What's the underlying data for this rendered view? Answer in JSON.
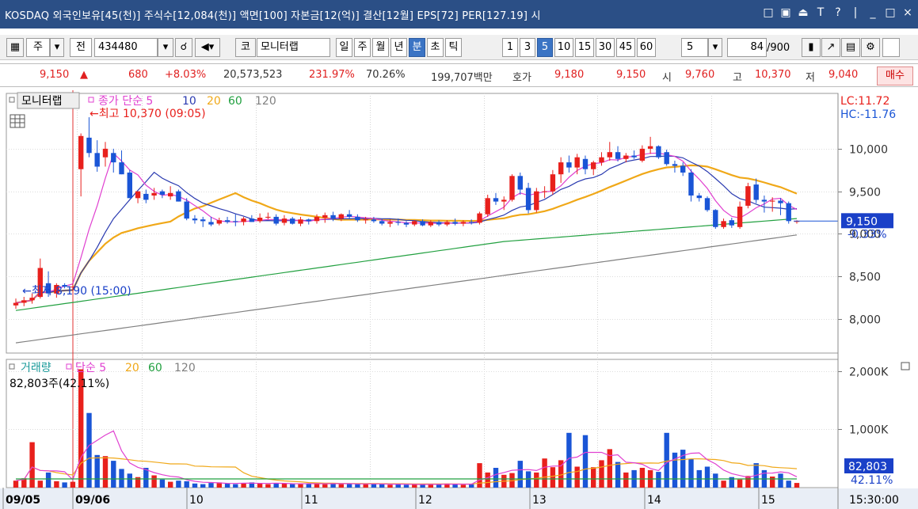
{
  "window": {
    "title": "KOSDAQ 외국인보유[45(천)] 주식수[12,084(천)] 액면[100] 자본금[12(억)] 결산[12월] EPS[72] PER[127.19] 시",
    "tool_glyphs": [
      "□",
      "▣",
      "⏏",
      "T",
      "?",
      "|",
      "_",
      "□",
      "×"
    ]
  },
  "toolbar": {
    "market_opt": "주",
    "all_label": "전",
    "code": "434480",
    "market_code": "코",
    "name": "모니터랩",
    "period_buttons": [
      "일",
      "주",
      "월",
      "년",
      "분",
      "초",
      "틱"
    ],
    "selected_period": "분",
    "interval_buttons": [
      "1",
      "3",
      "5",
      "10",
      "15",
      "30",
      "45",
      "60"
    ],
    "selected_interval": "5",
    "interval_value": "5",
    "count_value": "84",
    "count_total": "/900"
  },
  "quote": {
    "price": "9,150",
    "arrow": "▲",
    "change": "680",
    "change_pct": "+8.03%",
    "volume": "20,573,523",
    "volume_ratio": "231.97%",
    "turnover": "70.26%",
    "amount": "199,707백만",
    "ask_label": "호가",
    "ask": "9,180",
    "bid": "9,150",
    "open_label": "시",
    "open": "9,760",
    "high_label": "고",
    "high": "10,370",
    "low_label": "저",
    "low": "9,040",
    "buy_button": "매수"
  },
  "price_panel": {
    "legend_name": "모니터랩",
    "legend_ma_label": "종가 단순",
    "legend_periods": [
      "5",
      "10",
      "20",
      "60",
      "120"
    ],
    "high_note": "←최고 10,370 (09:05)",
    "low_note": "←최저 8,190 (15:00)",
    "lc_label": "LC:11.72",
    "hc_label": "HC:-11.76",
    "current_price": "9,150",
    "current_pct": "-0.33%",
    "y_ticks": [
      "10,000",
      "9,500",
      "9,000",
      "8,500",
      "8,000"
    ]
  },
  "volume_panel": {
    "legend_name": "거래량",
    "legend_ma_label": "단순",
    "legend_periods": [
      "5",
      "20",
      "60",
      "120"
    ],
    "info": "82,803주(42.11%)",
    "y_ticks": [
      "2,000K",
      "1,000K"
    ],
    "current_volume": "82,803",
    "current_pct": "42.11%"
  },
  "x_axis": {
    "labels": [
      "09/05",
      "09/06",
      "10",
      "11",
      "12",
      "13",
      "14",
      "15"
    ],
    "time": "15:30:00"
  },
  "colors": {
    "up": "#e8201c",
    "down": "#1a55d6",
    "ma5": "#e040d0",
    "ma10": "#2a3ab0",
    "ma20": "#f0a818",
    "ma60": "#22a040",
    "ma120": "#808080",
    "titlebar": "#2b4f86",
    "selected": "#3b74c4"
  },
  "chart_data": {
    "type": "candlestick",
    "interval": "5분",
    "ylim": [
      7600,
      10650
    ],
    "candles": [
      {
        "o": 8160,
        "h": 8240,
        "l": 8120,
        "c": 8190
      },
      {
        "o": 8190,
        "h": 8260,
        "l": 8150,
        "c": 8220
      },
      {
        "o": 8220,
        "h": 8300,
        "l": 8180,
        "c": 8250
      },
      {
        "o": 8260,
        "h": 8710,
        "l": 8240,
        "c": 8600
      },
      {
        "o": 8420,
        "h": 8560,
        "l": 8260,
        "c": 8300
      },
      {
        "o": 8300,
        "h": 8420,
        "l": 8250,
        "c": 8400
      },
      {
        "o": 8400,
        "h": 8420,
        "l": 8360,
        "c": 8380
      },
      {
        "o": 8380,
        "h": 8420,
        "l": 8330,
        "c": 8380
      },
      {
        "o": 9760,
        "h": 10180,
        "l": 9440,
        "c": 10150
      },
      {
        "o": 10130,
        "h": 10370,
        "l": 9900,
        "c": 9950
      },
      {
        "o": 9950,
        "h": 10100,
        "l": 9730,
        "c": 9790
      },
      {
        "o": 9900,
        "h": 10080,
        "l": 9790,
        "c": 10000
      },
      {
        "o": 9950,
        "h": 10000,
        "l": 9720,
        "c": 9840
      },
      {
        "o": 9840,
        "h": 9980,
        "l": 9700,
        "c": 9700
      },
      {
        "o": 9720,
        "h": 9750,
        "l": 9420,
        "c": 9420
      },
      {
        "o": 9420,
        "h": 9500,
        "l": 9360,
        "c": 9500
      },
      {
        "o": 9470,
        "h": 9520,
        "l": 9360,
        "c": 9400
      },
      {
        "o": 9450,
        "h": 9540,
        "l": 9400,
        "c": 9480
      },
      {
        "o": 9500,
        "h": 9520,
        "l": 9420,
        "c": 9460
      },
      {
        "o": 9440,
        "h": 9560,
        "l": 9400,
        "c": 9480
      },
      {
        "o": 9500,
        "h": 9520,
        "l": 9380,
        "c": 9380
      },
      {
        "o": 9380,
        "h": 9420,
        "l": 9160,
        "c": 9180
      },
      {
        "o": 9180,
        "h": 9220,
        "l": 9120,
        "c": 9160
      },
      {
        "o": 9170,
        "h": 9200,
        "l": 9080,
        "c": 9150
      },
      {
        "o": 9140,
        "h": 9200,
        "l": 9090,
        "c": 9110
      },
      {
        "o": 9120,
        "h": 9190,
        "l": 9100,
        "c": 9160
      },
      {
        "o": 9160,
        "h": 9200,
        "l": 9120,
        "c": 9140
      },
      {
        "o": 9150,
        "h": 9230,
        "l": 9090,
        "c": 9140
      },
      {
        "o": 9140,
        "h": 9200,
        "l": 9100,
        "c": 9180
      },
      {
        "o": 9180,
        "h": 9220,
        "l": 9140,
        "c": 9140
      },
      {
        "o": 9150,
        "h": 9240,
        "l": 9130,
        "c": 9190
      },
      {
        "o": 9190,
        "h": 9250,
        "l": 9170,
        "c": 9200
      },
      {
        "o": 9200,
        "h": 9230,
        "l": 9100,
        "c": 9120
      },
      {
        "o": 9130,
        "h": 9220,
        "l": 9100,
        "c": 9180
      },
      {
        "o": 9180,
        "h": 9200,
        "l": 9110,
        "c": 9120
      },
      {
        "o": 9120,
        "h": 9200,
        "l": 9090,
        "c": 9170
      },
      {
        "o": 9170,
        "h": 9180,
        "l": 9110,
        "c": 9150
      },
      {
        "o": 9150,
        "h": 9230,
        "l": 9120,
        "c": 9200
      },
      {
        "o": 9190,
        "h": 9250,
        "l": 9130,
        "c": 9220
      },
      {
        "o": 9220,
        "h": 9260,
        "l": 9150,
        "c": 9180
      },
      {
        "o": 9180,
        "h": 9240,
        "l": 9150,
        "c": 9230
      },
      {
        "o": 9230,
        "h": 9280,
        "l": 9170,
        "c": 9200
      },
      {
        "o": 9200,
        "h": 9230,
        "l": 9140,
        "c": 9160
      },
      {
        "o": 9160,
        "h": 9200,
        "l": 9120,
        "c": 9170
      },
      {
        "o": 9170,
        "h": 9200,
        "l": 9130,
        "c": 9150
      },
      {
        "o": 9150,
        "h": 9180,
        "l": 9100,
        "c": 9120
      },
      {
        "o": 9120,
        "h": 9170,
        "l": 9080,
        "c": 9140
      },
      {
        "o": 9140,
        "h": 9180,
        "l": 9100,
        "c": 9130
      },
      {
        "o": 9130,
        "h": 9150,
        "l": 9080,
        "c": 9110
      },
      {
        "o": 9110,
        "h": 9160,
        "l": 9090,
        "c": 9150
      },
      {
        "o": 9150,
        "h": 9170,
        "l": 9090,
        "c": 9100
      },
      {
        "o": 9100,
        "h": 9160,
        "l": 9080,
        "c": 9140
      },
      {
        "o": 9140,
        "h": 9160,
        "l": 9090,
        "c": 9110
      },
      {
        "o": 9110,
        "h": 9160,
        "l": 9090,
        "c": 9140
      },
      {
        "o": 9140,
        "h": 9180,
        "l": 9100,
        "c": 9120
      },
      {
        "o": 9120,
        "h": 9160,
        "l": 9090,
        "c": 9140
      },
      {
        "o": 9140,
        "h": 9170,
        "l": 9110,
        "c": 9130
      },
      {
        "o": 9130,
        "h": 9260,
        "l": 9110,
        "c": 9240
      },
      {
        "o": 9230,
        "h": 9460,
        "l": 9200,
        "c": 9420
      },
      {
        "o": 9420,
        "h": 9480,
        "l": 9340,
        "c": 9380
      },
      {
        "o": 9380,
        "h": 9440,
        "l": 9280,
        "c": 9400
      },
      {
        "o": 9400,
        "h": 9700,
        "l": 9380,
        "c": 9680
      },
      {
        "o": 9680,
        "h": 9720,
        "l": 9460,
        "c": 9520
      },
      {
        "o": 9540,
        "h": 9600,
        "l": 9240,
        "c": 9280
      },
      {
        "o": 9280,
        "h": 9540,
        "l": 9250,
        "c": 9500
      },
      {
        "o": 9500,
        "h": 9560,
        "l": 9420,
        "c": 9500
      },
      {
        "o": 9500,
        "h": 9750,
        "l": 9460,
        "c": 9700
      },
      {
        "o": 9700,
        "h": 9900,
        "l": 9600,
        "c": 9840
      },
      {
        "o": 9840,
        "h": 9920,
        "l": 9720,
        "c": 9780
      },
      {
        "o": 9780,
        "h": 9940,
        "l": 9700,
        "c": 9900
      },
      {
        "o": 9880,
        "h": 9920,
        "l": 9700,
        "c": 9760
      },
      {
        "o": 9760,
        "h": 9860,
        "l": 9690,
        "c": 9840
      },
      {
        "o": 9840,
        "h": 9960,
        "l": 9800,
        "c": 9900
      },
      {
        "o": 9900,
        "h": 10080,
        "l": 9860,
        "c": 9960
      },
      {
        "o": 9960,
        "h": 10030,
        "l": 9850,
        "c": 9880
      },
      {
        "o": 9880,
        "h": 9950,
        "l": 9840,
        "c": 9920
      },
      {
        "o": 9920,
        "h": 9980,
        "l": 9880,
        "c": 9900
      },
      {
        "o": 9860,
        "h": 10040,
        "l": 9840,
        "c": 10000
      },
      {
        "o": 10000,
        "h": 10140,
        "l": 9940,
        "c": 10030
      },
      {
        "o": 10030,
        "h": 10040,
        "l": 9880,
        "c": 9900
      },
      {
        "o": 9960,
        "h": 9990,
        "l": 9800,
        "c": 9820
      },
      {
        "o": 9820,
        "h": 9860,
        "l": 9720,
        "c": 9800
      },
      {
        "o": 9800,
        "h": 9840,
        "l": 9680,
        "c": 9720
      },
      {
        "o": 9720,
        "h": 9760,
        "l": 9380,
        "c": 9450
      },
      {
        "o": 9450,
        "h": 9480,
        "l": 9380,
        "c": 9420
      },
      {
        "o": 9420,
        "h": 9440,
        "l": 9260,
        "c": 9280
      },
      {
        "o": 9280,
        "h": 9290,
        "l": 9060,
        "c": 9080
      },
      {
        "o": 9080,
        "h": 9180,
        "l": 9060,
        "c": 9150
      },
      {
        "o": 9160,
        "h": 9190,
        "l": 9070,
        "c": 9100
      },
      {
        "o": 9080,
        "h": 9380,
        "l": 9060,
        "c": 9320
      },
      {
        "o": 9330,
        "h": 9600,
        "l": 9300,
        "c": 9560
      },
      {
        "o": 9580,
        "h": 9650,
        "l": 9360,
        "c": 9400
      },
      {
        "o": 9400,
        "h": 9450,
        "l": 9250,
        "c": 9380
      },
      {
        "o": 9380,
        "h": 9430,
        "l": 9260,
        "c": 9390
      },
      {
        "o": 9390,
        "h": 9420,
        "l": 9220,
        "c": 9360
      },
      {
        "o": 9360,
        "h": 9380,
        "l": 9120,
        "c": 9150
      },
      {
        "o": 9150,
        "h": 9160,
        "l": 9120,
        "c": 9150
      }
    ],
    "volume_k": [
      120,
      160,
      780,
      120,
      260,
      110,
      90,
      100,
      2030,
      1280,
      560,
      540,
      460,
      320,
      240,
      180,
      340,
      210,
      140,
      100,
      120,
      110,
      70,
      60,
      80,
      90,
      70,
      60,
      80,
      90,
      70,
      60,
      80,
      70,
      60,
      60,
      70,
      80,
      60,
      70,
      60,
      70,
      60,
      60,
      70,
      60,
      50,
      60,
      50,
      60,
      50,
      60,
      60,
      70,
      60,
      50,
      60,
      420,
      260,
      340,
      220,
      250,
      460,
      280,
      260,
      500,
      350,
      470,
      940,
      360,
      900,
      350,
      470,
      660,
      440,
      260,
      300,
      340,
      300,
      270,
      940,
      600,
      650,
      490,
      300,
      360,
      240,
      120,
      180,
      140,
      200,
      420,
      300,
      190,
      240,
      120,
      80
    ]
  }
}
